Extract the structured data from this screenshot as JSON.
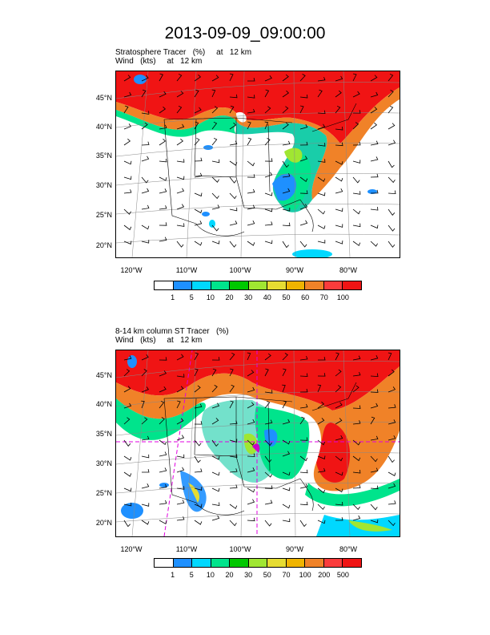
{
  "title": "2013-09-09_09:00:00",
  "panels": [
    {
      "subtitle_line1": "Stratosphere Tracer   (%)     at   12 km",
      "subtitle_line2": "Wind   (kts)     at   12 km",
      "lat_labels": [
        "45°N",
        "40°N",
        "35°N",
        "30°N",
        "25°N",
        "20°N"
      ],
      "lon_labels": [
        "120°W",
        "110°W",
        "100°W",
        "90°W",
        "80°W"
      ],
      "colorbar_labels": [
        "1",
        "5",
        "10",
        "20",
        "30",
        "40",
        "50",
        "60",
        "70",
        "100"
      ],
      "colorbar_colors": [
        "#ffffff",
        "#1e90ff",
        "#00d8ff",
        "#00e48c",
        "#00c800",
        "#a0e632",
        "#e6dc32",
        "#f0b400",
        "#f08228",
        "#fa3c3c",
        "#f01414"
      ]
    },
    {
      "subtitle_line1": "8-14 km column ST Tracer   (%)",
      "subtitle_line2": "Wind   (kts)     at   12 km",
      "lat_labels": [
        "45°N",
        "40°N",
        "35°N",
        "30°N",
        "25°N",
        "20°N"
      ],
      "lon_labels": [
        "120°W",
        "110°W",
        "100°W",
        "90°W",
        "80°W"
      ],
      "colorbar_labels": [
        "1",
        "5",
        "10",
        "20",
        "30",
        "50",
        "70",
        "100",
        "200",
        "500"
      ],
      "colorbar_colors": [
        "#ffffff",
        "#1e90ff",
        "#00d8ff",
        "#00e48c",
        "#00c800",
        "#a0e632",
        "#e6dc32",
        "#f0b400",
        "#f08228",
        "#fa3c3c",
        "#f01414"
      ]
    }
  ]
}
